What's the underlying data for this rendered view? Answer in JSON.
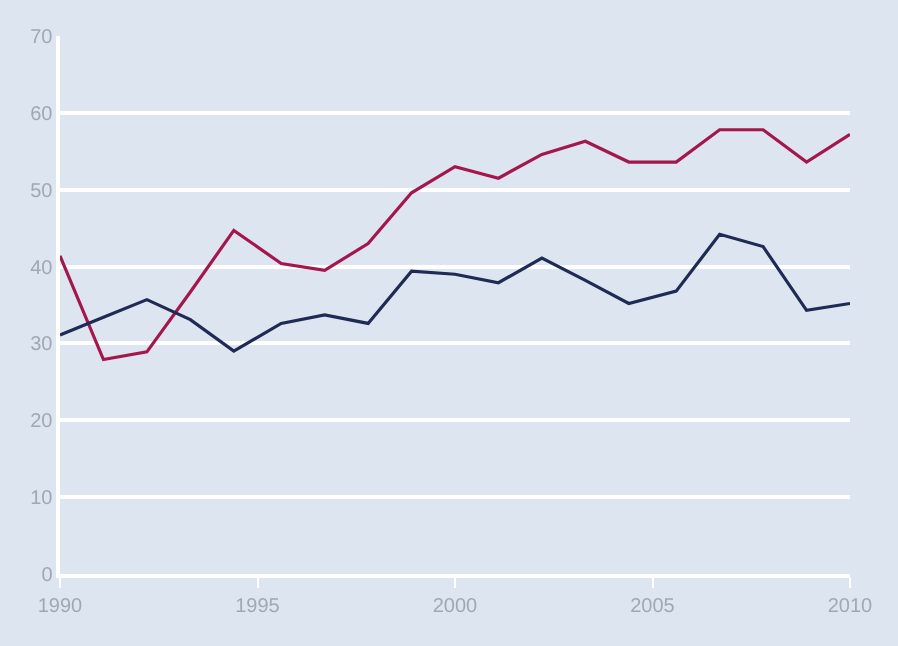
{
  "chart_data": {
    "type": "line",
    "x": [
      1990,
      1991.1,
      1992.2,
      1993.3,
      1994.4,
      1995.6,
      1996.7,
      1997.8,
      1998.9,
      2000,
      2001.1,
      2002.2,
      2003.3,
      2004.4,
      2005.6,
      2006.7,
      2007.8,
      2008.9,
      2010
    ],
    "series": [
      {
        "color": "#a3174c",
        "values": [
          41.4,
          27.9,
          28.9,
          36.7,
          44.7,
          40.4,
          39.5,
          43,
          49.6,
          53,
          51.5,
          54.6,
          56.3,
          53.6,
          53.6,
          57.8,
          57.8,
          53.6,
          57.2
        ]
      },
      {
        "color": "#1f2a55",
        "values": [
          31.1,
          33.4,
          35.7,
          33.1,
          29,
          32.6,
          33.7,
          32.6,
          39.4,
          39,
          37.9,
          41.1,
          38.2,
          35.2,
          36.8,
          44.2,
          42.6,
          34.3,
          35.2
        ]
      }
    ],
    "xlim": [
      1990,
      2010
    ],
    "xticks": [
      1990,
      1995,
      2000,
      2005,
      2010
    ],
    "ylim": [
      0,
      70
    ],
    "yticks": [
      0,
      10,
      20,
      30,
      40,
      50,
      60,
      70
    ],
    "grid": "y",
    "marker": "none",
    "line_style": "solid"
  }
}
